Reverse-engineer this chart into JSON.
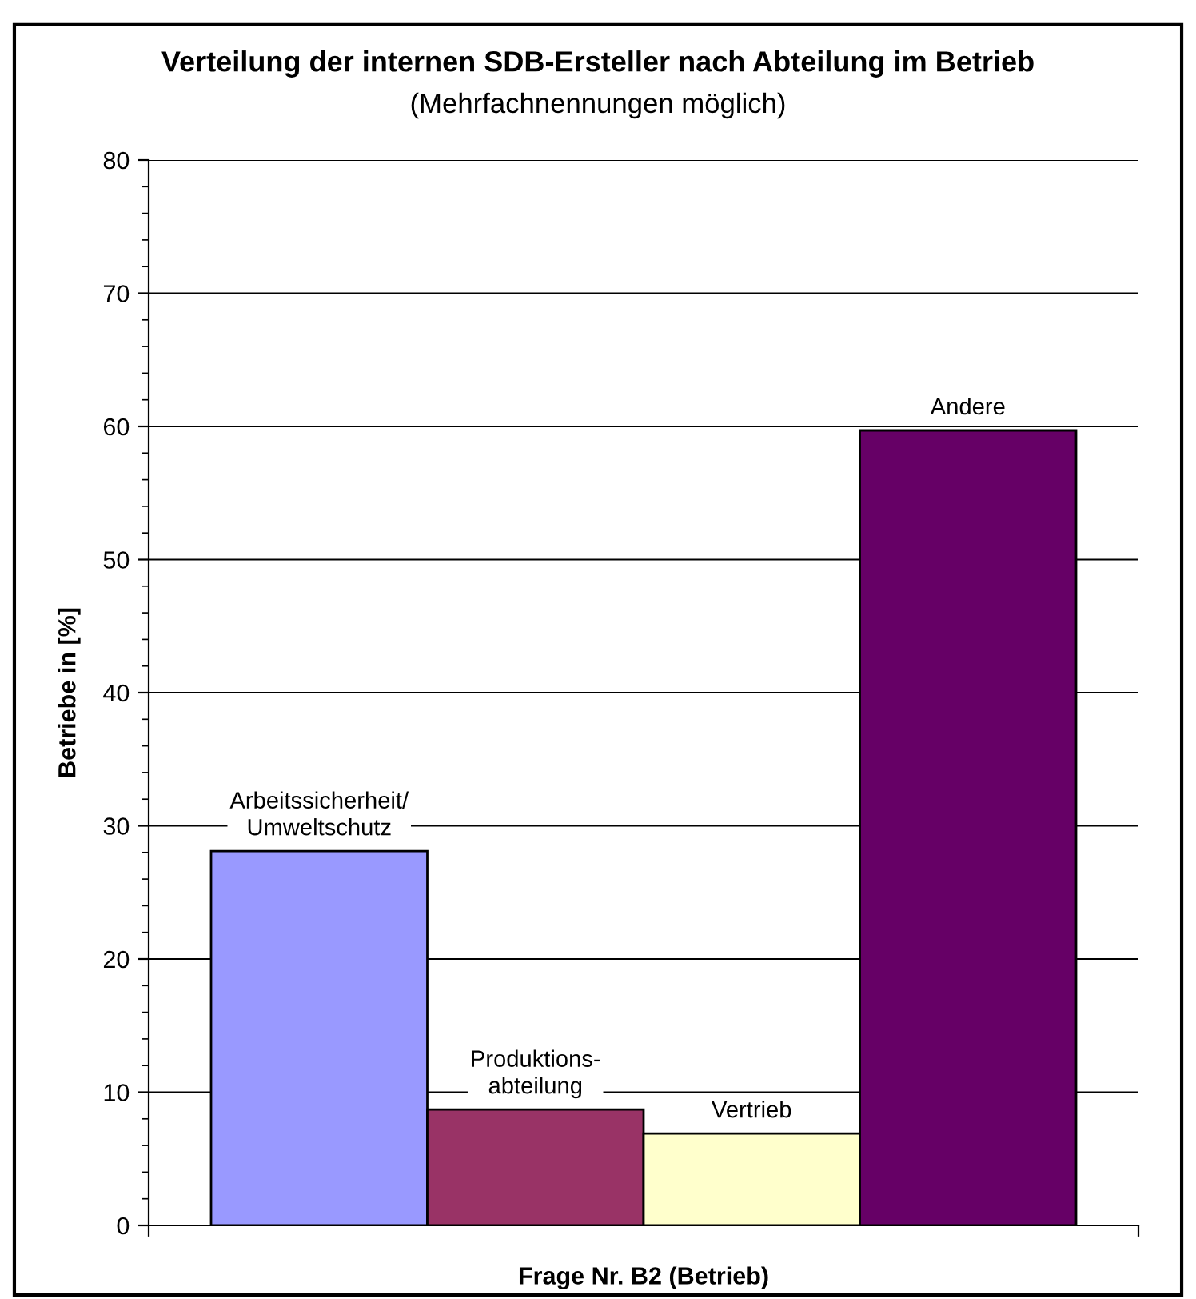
{
  "chart_data": {
    "type": "bar",
    "title": "Verteilung der internen SDB-Ersteller nach Abteilung im Betrieb",
    "subtitle": "(Mehrfachnennungen möglich)",
    "xlabel": "Frage Nr. B2 (Betrieb)",
    "ylabel": "Betriebe in [%]",
    "categories": [
      null
    ],
    "series": [
      {
        "name": "Arbeitssicherheit/\nUmweltschutz",
        "color": "#9999ff",
        "values": [
          28.1
        ]
      },
      {
        "name": "Produktions-\nabteilung",
        "color": "#993366",
        "values": [
          8.7
        ]
      },
      {
        "name": "Vertrieb",
        "color": "#ffffcc",
        "values": [
          6.9
        ]
      },
      {
        "name": "Andere",
        "color": "#660066",
        "values": [
          59.7
        ]
      }
    ],
    "ylim": [
      0,
      80
    ],
    "yticks": [
      0,
      10,
      20,
      30,
      40,
      50,
      60,
      70,
      80
    ],
    "grid": "y",
    "legend": false
  }
}
